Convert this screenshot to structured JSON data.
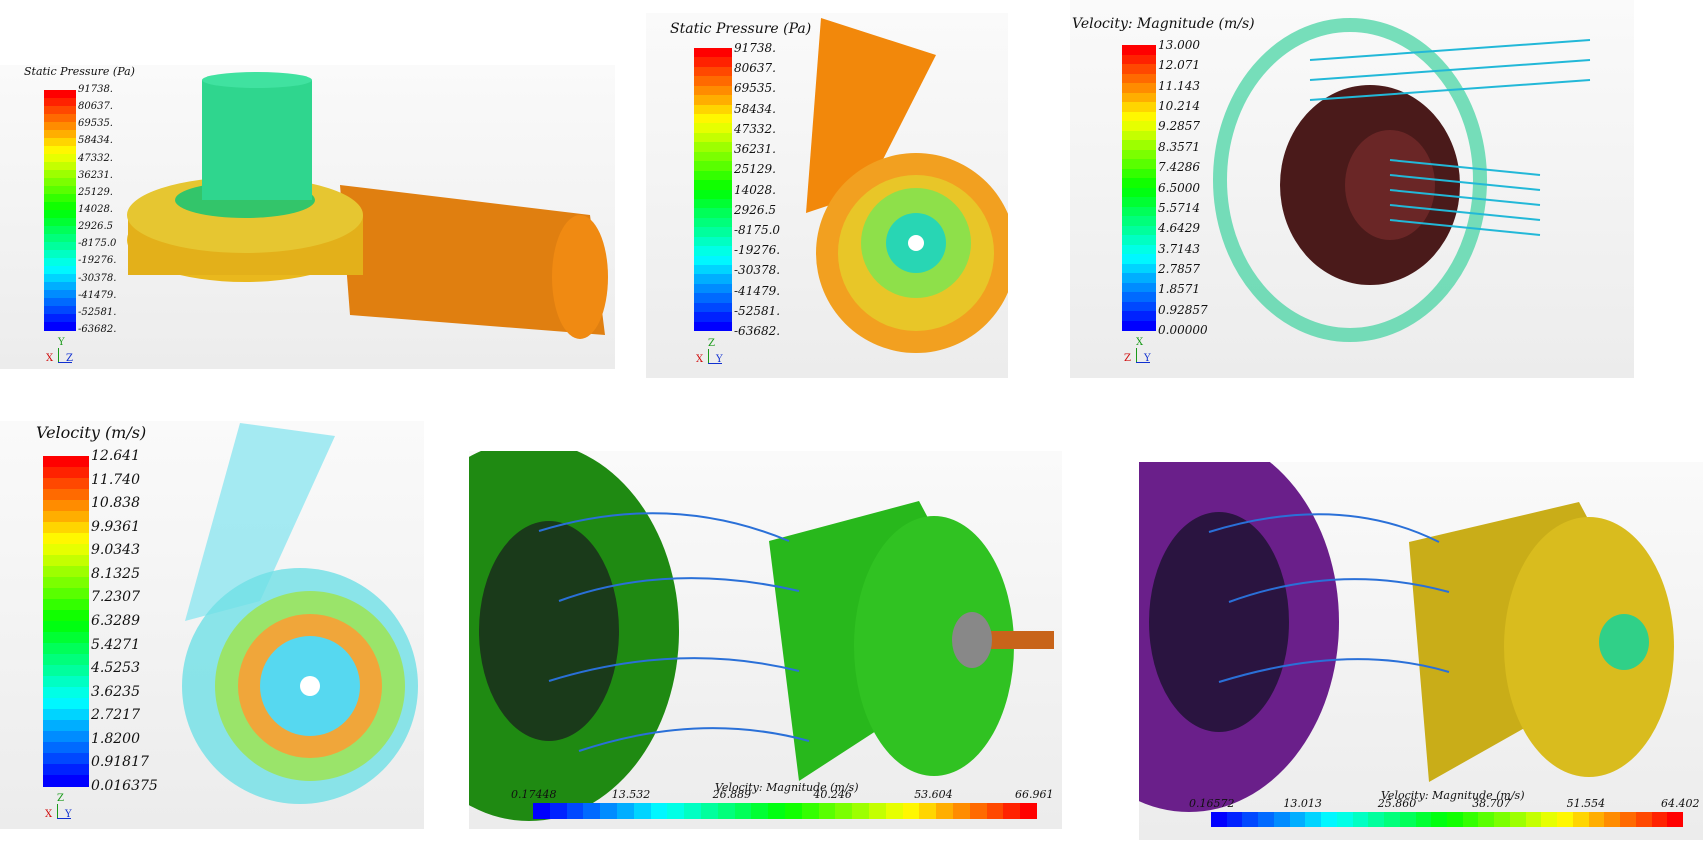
{
  "panels": [
    {
      "title": "Static Pressure (Pa)",
      "labels": [
        "91738.",
        "80637.",
        "69535.",
        "58434.",
        "47332.",
        "36231.",
        "25129.",
        "14028.",
        "2926.5",
        "-8175.0",
        "-19276.",
        "-30378.",
        "-41479.",
        "-52581.",
        "-63682."
      ],
      "axes": [
        "Y",
        "X",
        "Z"
      ]
    },
    {
      "title": "Static Pressure (Pa)",
      "labels": [
        "91738.",
        "80637.",
        "69535.",
        "58434.",
        "47332.",
        "36231.",
        "25129.",
        "14028.",
        "2926.5",
        "-8175.0",
        "-19276.",
        "-30378.",
        "-41479.",
        "-52581.",
        "-63682."
      ],
      "axes": [
        "Z",
        "X",
        "Y"
      ]
    },
    {
      "title": "Velocity: Magnitude (m/s)",
      "labels": [
        "13.000",
        "12.071",
        "11.143",
        "10.214",
        "9.2857",
        "8.3571",
        "7.4286",
        "6.5000",
        "5.5714",
        "4.6429",
        "3.7143",
        "2.7857",
        "1.8571",
        "0.92857",
        "0.00000"
      ],
      "axes": [
        "X",
        "Z",
        "Y"
      ]
    },
    {
      "title": "Velocity (m/s)",
      "labels": [
        "12.641",
        "11.740",
        "10.838",
        "9.9361",
        "9.0343",
        "8.1325",
        "7.2307",
        "6.3289",
        "5.4271",
        "4.5253",
        "3.6235",
        "2.7217",
        "1.8200",
        "0.91817",
        "0.016375"
      ],
      "axes": [
        "Z",
        "X",
        "Y"
      ]
    },
    {
      "title": "Velocity: Magnitude (m/s)",
      "labels": [
        "0.17448",
        "13.532",
        "26.889",
        "40.246",
        "53.604",
        "66.961"
      ]
    },
    {
      "title": "Velocity: Magnitude (m/s)",
      "labels": [
        "0.16572",
        "13.013",
        "25.860",
        "38.707",
        "51.554",
        "64.402"
      ]
    }
  ]
}
